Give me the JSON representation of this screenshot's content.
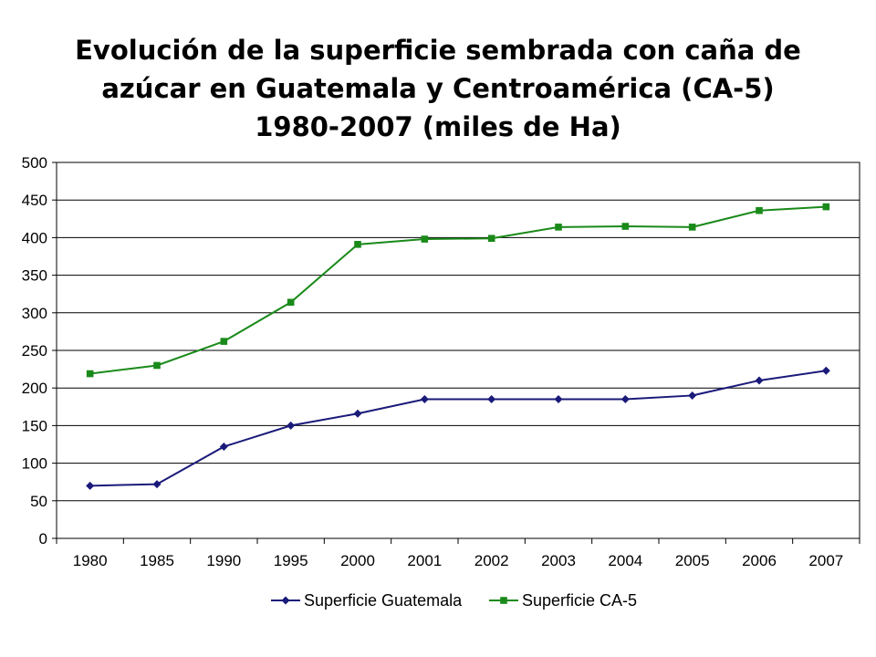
{
  "chart_data": {
    "type": "line",
    "title_lines": [
      "Evolución de la superficie sembrada con caña de",
      "azúcar en Guatemala y Centroamérica (CA-5)",
      "1980-2007 (miles de Ha)"
    ],
    "categories": [
      "1980",
      "1985",
      "1990",
      "1995",
      "2000",
      "2001",
      "2002",
      "2003",
      "2004",
      "2005",
      "2006",
      "2007"
    ],
    "yticks": [
      "0",
      "50",
      "100",
      "150",
      "200",
      "250",
      "300",
      "350",
      "400",
      "450",
      "500"
    ],
    "ylim": [
      0,
      500
    ],
    "grid": true,
    "legend_position": "bottom",
    "series": [
      {
        "name": "Superficie Guatemala",
        "color": "#1a1a7a",
        "marker": "diamond",
        "values": [
          70,
          72,
          122,
          150,
          166,
          185,
          185,
          185,
          185,
          190,
          210,
          223
        ]
      },
      {
        "name": "Superficie CA-5",
        "color": "#1a8a1a",
        "marker": "square",
        "values": [
          219,
          230,
          262,
          314,
          391,
          398,
          399,
          414,
          415,
          414,
          436,
          441
        ]
      }
    ]
  }
}
